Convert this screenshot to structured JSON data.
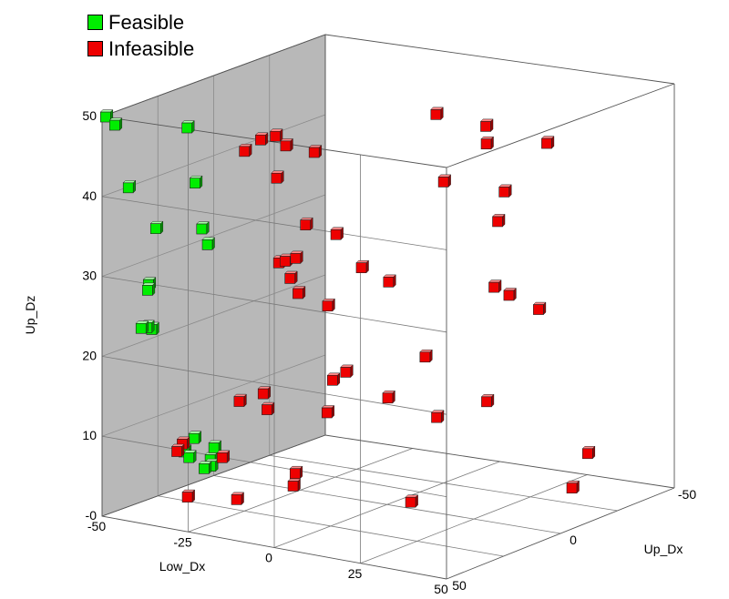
{
  "chart_data": {
    "type": "scatter3d",
    "xlabel": "Low_Dx",
    "ylabel": "Up_Dx",
    "zlabel": "Up_Dz",
    "x_ticks": [
      "-50",
      "-25",
      "0",
      "25",
      "50"
    ],
    "y_ticks": [
      "50",
      "0",
      "-50"
    ],
    "z_ticks": [
      "-0",
      "10",
      "20",
      "30",
      "40",
      "50"
    ],
    "xlim": [
      -50,
      50
    ],
    "ylim": [
      -50,
      50
    ],
    "zlim": [
      0,
      50
    ],
    "grid": true,
    "legend_position": "top-left",
    "series": [
      {
        "name": "Feasible",
        "color": "#00ee00",
        "points": [
          [
            -49,
            50,
            50
          ],
          [
            -47,
            49,
            49
          ],
          [
            -26,
            49,
            50
          ],
          [
            -45,
            46,
            41
          ],
          [
            -39,
            43,
            36
          ],
          [
            -45,
            37,
            28
          ],
          [
            -42,
            42,
            28
          ],
          [
            -46,
            34,
            22
          ],
          [
            -48,
            33,
            22
          ],
          [
            -25,
            47,
            43
          ],
          [
            -25,
            44,
            37
          ],
          [
            -24,
            43,
            35
          ],
          [
            -48,
            12,
            6
          ],
          [
            -47,
            18,
            5
          ],
          [
            -43,
            22,
            5
          ],
          [
            -42,
            14,
            4
          ],
          [
            -39,
            17,
            6
          ],
          [
            -47,
            6,
            2
          ],
          [
            -47,
            9,
            2
          ],
          [
            -40,
            48,
            24
          ]
        ]
      },
      {
        "name": "Infeasible",
        "color": "#ee0000",
        "points": [
          [
            -4,
            50,
            50
          ],
          [
            -3,
            45,
            50
          ],
          [
            -2,
            46,
            45
          ],
          [
            -4,
            42,
            34
          ],
          [
            -2,
            40,
            32
          ],
          [
            -1,
            38,
            30
          ],
          [
            3,
            31,
            28
          ],
          [
            10,
            38,
            38
          ],
          [
            -6,
            27,
            37
          ],
          [
            9,
            38,
            20
          ],
          [
            20,
            30,
            32
          ],
          [
            35,
            10,
            50
          ],
          [
            45,
            25,
            50
          ],
          [
            30,
            21,
            44
          ],
          [
            45,
            20,
            40
          ],
          [
            40,
            14,
            31
          ],
          [
            24,
            20,
            22
          ],
          [
            43,
            12,
            30
          ],
          [
            -20,
            35,
            15
          ],
          [
            -35,
            35,
            2
          ],
          [
            -15,
            32,
            16
          ],
          [
            -24,
            30,
            2
          ],
          [
            -30,
            45,
            10
          ],
          [
            -40,
            32,
            7
          ],
          [
            -23,
            18,
            12
          ],
          [
            -5,
            19,
            13
          ],
          [
            -10,
            3,
            16
          ],
          [
            -45,
            4,
            3
          ],
          [
            8,
            12,
            15
          ],
          [
            11,
            -5,
            11
          ],
          [
            30,
            2,
            15
          ],
          [
            50,
            -5,
            5
          ],
          [
            26,
            -27,
            23
          ],
          [
            31,
            -41,
            4
          ],
          [
            12,
            8,
            2
          ],
          [
            -22,
            7,
            3
          ],
          [
            -20,
            11,
            2
          ],
          [
            -10,
            48,
            48
          ],
          [
            18,
            6,
            50
          ],
          [
            5,
            40,
            48
          ],
          [
            0,
            45,
            49
          ],
          [
            20,
            42,
            35
          ],
          [
            -8,
            33,
            33
          ],
          [
            -3,
            36,
            34
          ],
          [
            48,
            3,
            48
          ],
          [
            39,
            8,
            42
          ]
        ]
      }
    ]
  }
}
